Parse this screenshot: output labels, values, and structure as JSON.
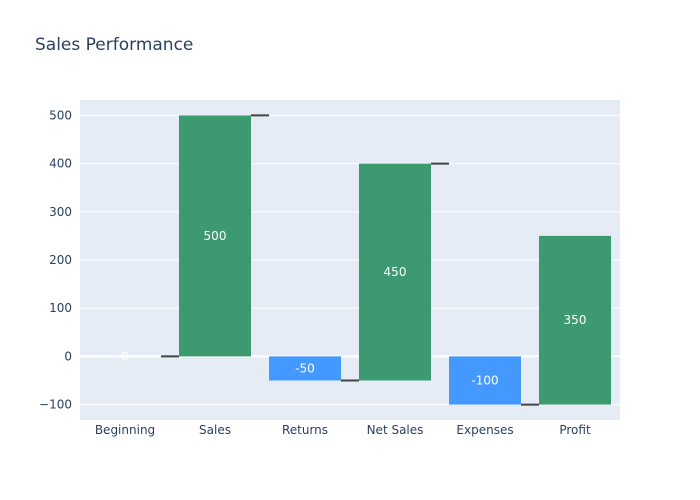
{
  "chart_data": {
    "type": "bar",
    "subtype": "waterfall",
    "title": "Sales Performance",
    "xlabel": "",
    "ylabel": "",
    "categories": [
      "Beginning",
      "Sales",
      "Returns",
      "Net Sales",
      "Expenses",
      "Profit"
    ],
    "bars": [
      {
        "category": "Beginning",
        "base": 0,
        "top": 0,
        "label": "0",
        "kind": "increase"
      },
      {
        "category": "Sales",
        "base": 0,
        "top": 500,
        "label": "500",
        "kind": "increase"
      },
      {
        "category": "Returns",
        "base": 0,
        "top": -50,
        "label": "-50",
        "kind": "decrease"
      },
      {
        "category": "Net Sales",
        "base": -50,
        "top": 400,
        "label": "450",
        "kind": "increase"
      },
      {
        "category": "Expenses",
        "base": 0,
        "top": -100,
        "label": "-100",
        "kind": "decrease"
      },
      {
        "category": "Profit",
        "base": -100,
        "top": 250,
        "label": "350",
        "kind": "increase"
      }
    ],
    "connectors": [
      {
        "from": "Beginning",
        "to": "Sales",
        "y": 0
      },
      {
        "from": "Sales",
        "to": "Returns",
        "y": 500
      },
      {
        "from": "Returns",
        "to": "Net Sales",
        "y": -50
      },
      {
        "from": "Net Sales",
        "to": "Expenses",
        "y": 400
      },
      {
        "from": "Expenses",
        "to": "Profit",
        "y": -100
      }
    ],
    "yticks": [
      -100,
      0,
      100,
      200,
      300,
      400,
      500
    ],
    "ylim": [
      -132,
      532
    ],
    "grid": true,
    "colors": {
      "increase": "#3d9970",
      "decrease": "#4499ff",
      "connector": "#444444",
      "plot_background": "#e5ecf6",
      "grid": "#ffffff",
      "text": "#2a3f5f",
      "data_label": "#ffffff"
    }
  }
}
